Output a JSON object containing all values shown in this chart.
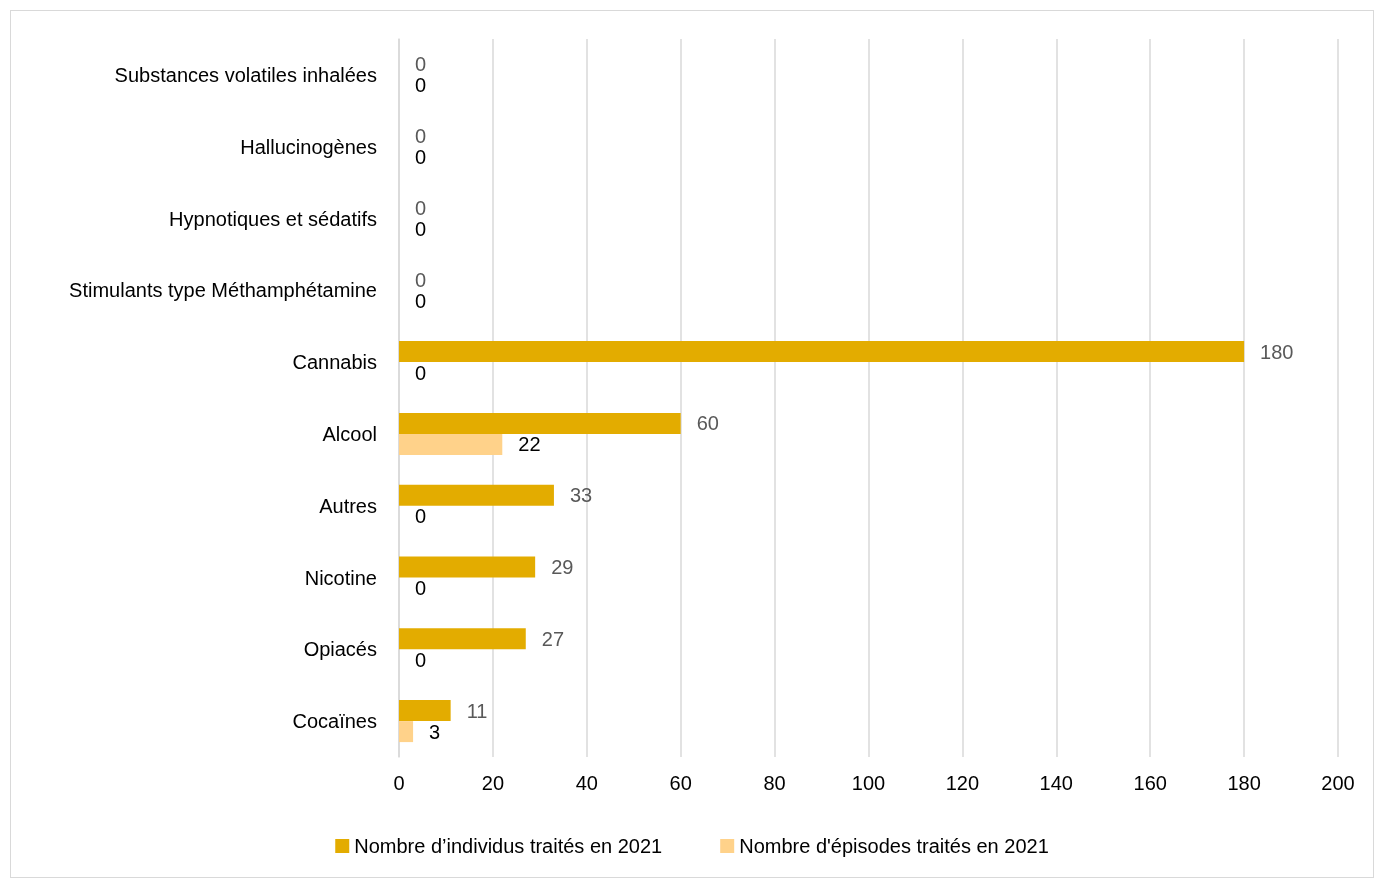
{
  "chart_data": {
    "type": "bar",
    "orientation": "horizontal",
    "categories": [
      "Substances volatiles inhalées",
      "Hallucinogènes",
      "Hypnotiques et sédatifs",
      "Stimulants type Méthamphétamine",
      "Cannabis",
      "Alcool",
      "Autres",
      "Nicotine",
      "Opiacés",
      "Cocaïnes"
    ],
    "series": [
      {
        "name": "Nombre d’individus traités en 2021",
        "color": "#e3ac00",
        "values": [
          0,
          0,
          0,
          0,
          180,
          60,
          33,
          29,
          27,
          11
        ]
      },
      {
        "name": "Nombre d'épisodes traités en 2021",
        "color": "#ffd28a",
        "values": [
          0,
          0,
          0,
          0,
          0,
          22,
          0,
          0,
          0,
          3
        ]
      }
    ],
    "xlim": [
      0,
      200
    ],
    "xticks": [
      0,
      20,
      40,
      60,
      80,
      100,
      120,
      140,
      160,
      180,
      200
    ],
    "grid": "x",
    "legend": "bottom",
    "data_labels": true
  }
}
